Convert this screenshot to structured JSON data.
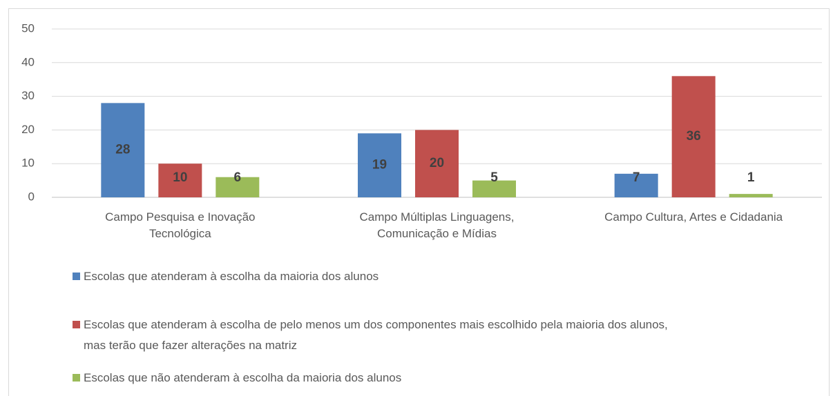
{
  "chart_data": {
    "type": "bar",
    "categories": [
      "Campo Pesquisa e Inovação Tecnológica",
      "Campo Múltiplas Linguagens, Comunicação e Mídias",
      "Campo Cultura, Artes e Cidadania"
    ],
    "series": [
      {
        "name": "Escolas que atenderam à escolha da maioria dos alunos",
        "color": "#4f81bd",
        "values": [
          28,
          19,
          7
        ]
      },
      {
        "name": "Escolas que atenderam à escolha de pelo menos um dos componentes mais escolhido pela maioria dos alunos, mas terão que fazer alterações na matriz",
        "color": "#c0504d",
        "values": [
          10,
          20,
          36
        ]
      },
      {
        "name": "Escolas que não atenderam à escolha da maioria dos alunos",
        "color": "#9bbb59",
        "values": [
          6,
          5,
          1
        ]
      }
    ],
    "ylim": [
      0,
      50
    ],
    "yticks": [
      0,
      10,
      20,
      30,
      40,
      50
    ],
    "grid": true,
    "legend": "bottom"
  }
}
